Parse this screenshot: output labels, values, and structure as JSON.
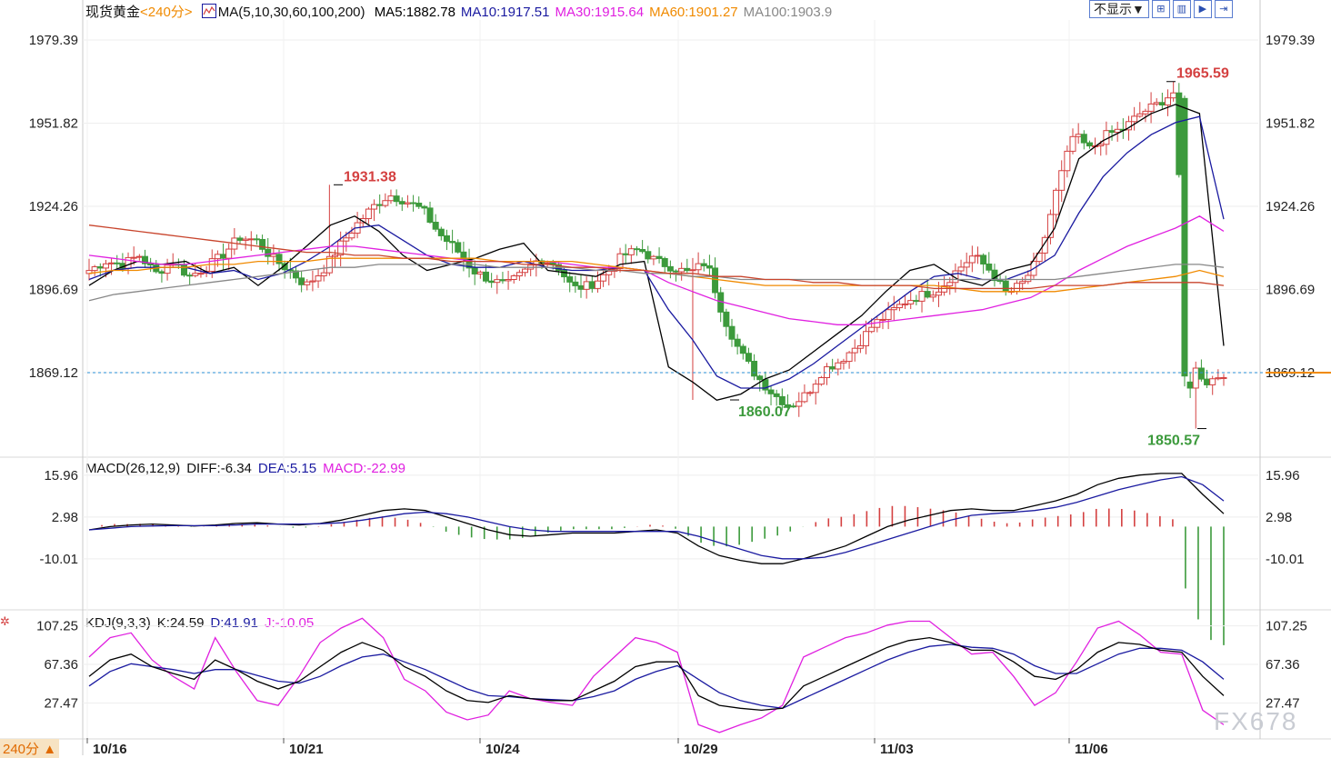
{
  "header": {
    "symbol": "现货黄金",
    "period": "<240分>",
    "ma_label": "MA(5,10,30,60,100,200)",
    "ma_values": [
      {
        "label": "MA5:1882.78",
        "color": "#000000"
      },
      {
        "label": "MA10:1917.51",
        "color": "#1a1aa0"
      },
      {
        "label": "MA30:1915.64",
        "color": "#e020e0"
      },
      {
        "label": "MA60:1901.27",
        "color": "#f08a00"
      },
      {
        "label": "MA100:1903.9",
        "color": "#888888"
      }
    ],
    "dropdown_label": "不显示▼",
    "toolbar_icons": [
      "zoom-fit-icon",
      "layout-icon",
      "play-icon",
      "step-icon"
    ]
  },
  "colors": {
    "up": "#d44040",
    "down": "#3c9a3c",
    "ma5": "#000000",
    "ma10": "#1a1aa0",
    "ma30": "#e020e0",
    "ma60": "#f08a00",
    "ma100": "#888888",
    "ma200": "#c8442c",
    "grid": "#eeeeee"
  },
  "chart_data": [
    {
      "type": "candlestick",
      "yticks": [
        1979.39,
        1951.82,
        1924.26,
        1896.69,
        1869.12
      ],
      "ylim": [
        1842,
        1986
      ],
      "xticks": [
        "10/16",
        "10/21",
        "10/24",
        "10/29",
        "11/03",
        "11/06"
      ],
      "current_price": 1869.12,
      "annotations": [
        {
          "label": "1931.38",
          "value": 1931.38,
          "type": "high"
        },
        {
          "label": "1860.07",
          "value": 1860.07,
          "type": "low"
        },
        {
          "label": "1965.59",
          "value": 1965.59,
          "type": "high"
        },
        {
          "label": "1850.57",
          "value": 1850.57,
          "type": "low"
        }
      ],
      "anchors": [
        1903,
        1906,
        1905,
        1908,
        1902,
        1906,
        1901,
        1904,
        1908,
        1914,
        1913,
        1907,
        1903,
        1898,
        1903,
        1911,
        1918,
        1924,
        1928,
        1926,
        1923,
        1915,
        1910,
        1903,
        1900,
        1898,
        1902,
        1907,
        1905,
        1897,
        1898,
        1902,
        1908,
        1910,
        1906,
        1904,
        1902,
        1906,
        1888,
        1876,
        1868,
        1862,
        1858,
        1862,
        1870,
        1873,
        1878,
        1885,
        1889,
        1893,
        1895,
        1897,
        1903,
        1908,
        1903,
        1895,
        1899,
        1908,
        1930,
        1948,
        1943,
        1948,
        1950,
        1955,
        1958,
        1962,
        1872,
        1866,
        1869
      ],
      "series": [
        {
          "name": "MA5",
          "values": [
            1898,
            1903,
            1906,
            1905,
            1906,
            1902,
            1904,
            1898,
            1904,
            1911,
            1918,
            1921,
            1916,
            1908,
            1903,
            1905,
            1907,
            1910,
            1912,
            1903,
            1902,
            1901,
            1905,
            1906,
            1871,
            1866,
            1860,
            1862,
            1867,
            1870,
            1876,
            1882,
            1888,
            1896,
            1903,
            1905,
            1900,
            1898,
            1903,
            1905,
            1917,
            1940,
            1946,
            1950,
            1955,
            1958,
            1955,
            1878
          ]
        },
        {
          "name": "MA10",
          "values": [
            1900,
            1903,
            1904,
            1904,
            1904,
            1902,
            1903,
            1900,
            1902,
            1906,
            1911,
            1917,
            1918,
            1913,
            1908,
            1905,
            1904,
            1904,
            1906,
            1904,
            1903,
            1903,
            1904,
            1903,
            1890,
            1880,
            1868,
            1864,
            1864,
            1867,
            1872,
            1878,
            1884,
            1890,
            1896,
            1901,
            1902,
            1900,
            1900,
            1903,
            1908,
            1922,
            1934,
            1942,
            1948,
            1952,
            1954,
            1920
          ]
        },
        {
          "name": "MA30",
          "values": [
            1908,
            1907,
            1906,
            1905,
            1905,
            1906,
            1907,
            1908,
            1909,
            1910,
            1911,
            1911,
            1910,
            1909,
            1908,
            1907,
            1906,
            1906,
            1906,
            1906,
            1905,
            1904,
            1904,
            1903,
            1899,
            1896,
            1893,
            1891,
            1889,
            1887,
            1886,
            1885,
            1885,
            1886,
            1887,
            1888,
            1889,
            1890,
            1892,
            1894,
            1898,
            1903,
            1907,
            1911,
            1914,
            1917,
            1921,
            1916
          ]
        },
        {
          "name": "MA60",
          "values": [
            1902,
            1903,
            1903,
            1904,
            1904,
            1905,
            1905,
            1906,
            1906,
            1906,
            1907,
            1907,
            1907,
            1907,
            1907,
            1907,
            1907,
            1906,
            1906,
            1906,
            1906,
            1905,
            1904,
            1903,
            1902,
            1901,
            1900,
            1899,
            1898,
            1898,
            1898,
            1898,
            1898,
            1898,
            1898,
            1898,
            1897,
            1896,
            1896,
            1896,
            1896,
            1897,
            1898,
            1899,
            1900,
            1901,
            1903,
            1901
          ]
        },
        {
          "name": "MA100",
          "values": [
            1893,
            1895,
            1896,
            1897,
            1898,
            1899,
            1900,
            1901,
            1902,
            1903,
            1904,
            1904,
            1905,
            1905,
            1905,
            1905,
            1905,
            1904,
            1904,
            1904,
            1904,
            1903,
            1903,
            1902,
            1902,
            1901,
            1901,
            1900,
            1900,
            1900,
            1900,
            1900,
            1900,
            1900,
            1900,
            1900,
            1900,
            1900,
            1900,
            1900,
            1900,
            1901,
            1902,
            1903,
            1904,
            1905,
            1905,
            1904
          ]
        },
        {
          "name": "MA200",
          "values": [
            1918,
            1917,
            1916,
            1915,
            1914,
            1913,
            1912,
            1911,
            1910,
            1909,
            1909,
            1908,
            1908,
            1907,
            1907,
            1906,
            1906,
            1906,
            1905,
            1905,
            1904,
            1904,
            1903,
            1903,
            1902,
            1902,
            1901,
            1901,
            1900,
            1900,
            1899,
            1899,
            1898,
            1898,
            1898,
            1897,
            1897,
            1897,
            1897,
            1897,
            1898,
            1898,
            1898,
            1899,
            1899,
            1899,
            1899,
            1898
          ]
        }
      ]
    },
    {
      "type": "macd",
      "title": "MACD(26,12,9)",
      "diff_label": "DIFF:-6.34",
      "dea_label": "DEA:5.15",
      "macd_label": "MACD:-22.99",
      "yticks": [
        15.96,
        2.98,
        -10.01
      ],
      "ylim": [
        -25,
        21
      ],
      "diff": [
        -1,
        0,
        0.5,
        0.8,
        0.5,
        0.2,
        0.5,
        1,
        1.2,
        0.8,
        0.5,
        1,
        2,
        3.5,
        5,
        5.5,
        5,
        3,
        1,
        -1,
        -2.5,
        -3,
        -2.5,
        -2,
        -2,
        -2,
        -1.5,
        -1,
        -2,
        -6,
        -9,
        -10.5,
        -11.5,
        -11.5,
        -10,
        -8,
        -6,
        -3,
        0,
        2,
        3.5,
        5,
        5.5,
        5,
        5,
        6.5,
        8,
        10,
        13,
        15,
        16,
        16.5,
        16.5,
        10,
        4
      ],
      "dea": [
        -1,
        -0.5,
        0,
        0.2,
        0.3,
        0.3,
        0.3,
        0.5,
        0.8,
        0.8,
        0.8,
        0.9,
        1.2,
        2,
        3,
        4,
        4.5,
        4,
        3,
        1.5,
        0,
        -1,
        -1.5,
        -1.5,
        -1.5,
        -1.5,
        -1.5,
        -1.5,
        -1.5,
        -3,
        -5,
        -7,
        -9,
        -10,
        -10,
        -9.5,
        -8,
        -6,
        -4,
        -2,
        0,
        2,
        3.5,
        4,
        4.5,
        5,
        6,
        7.5,
        9.5,
        11.5,
        13,
        14.5,
        15.5,
        13,
        8
      ]
    },
    {
      "type": "kdj",
      "title": "KDJ(9,3,3)",
      "k_label": "K:24.59",
      "d_label": "D:41.91",
      "j_label": "J:-10.05",
      "yticks": [
        107.25,
        67.36,
        27.47
      ],
      "ylim": [
        -5,
        120
      ],
      "k": [
        55,
        72,
        78,
        65,
        58,
        52,
        72,
        62,
        50,
        42,
        50,
        65,
        80,
        90,
        82,
        65,
        55,
        40,
        30,
        28,
        35,
        32,
        30,
        30,
        40,
        50,
        65,
        70,
        70,
        35,
        25,
        22,
        20,
        22,
        45,
        55,
        65,
        75,
        85,
        92,
        95,
        90,
        82,
        82,
        70,
        55,
        52,
        62,
        80,
        90,
        88,
        82,
        80,
        55,
        35
      ],
      "d": [
        45,
        60,
        68,
        65,
        62,
        58,
        62,
        62,
        56,
        50,
        48,
        55,
        66,
        75,
        78,
        70,
        62,
        52,
        42,
        35,
        34,
        32,
        31,
        30,
        34,
        40,
        52,
        60,
        66,
        52,
        38,
        30,
        25,
        22,
        32,
        42,
        52,
        62,
        72,
        80,
        86,
        88,
        85,
        84,
        78,
        66,
        58,
        58,
        68,
        78,
        84,
        84,
        82,
        70,
        52
      ],
      "j": [
        75,
        95,
        100,
        72,
        55,
        42,
        95,
        60,
        30,
        25,
        55,
        90,
        105,
        115,
        95,
        52,
        40,
        18,
        10,
        15,
        40,
        32,
        28,
        25,
        55,
        75,
        95,
        90,
        80,
        5,
        -3,
        5,
        12,
        25,
        75,
        85,
        95,
        100,
        108,
        112,
        112,
        95,
        78,
        80,
        55,
        25,
        38,
        70,
        105,
        112,
        98,
        80,
        78,
        20,
        5
      ]
    }
  ],
  "footer": {
    "period_tag": "240分 ▲",
    "watermark": "FX678"
  }
}
